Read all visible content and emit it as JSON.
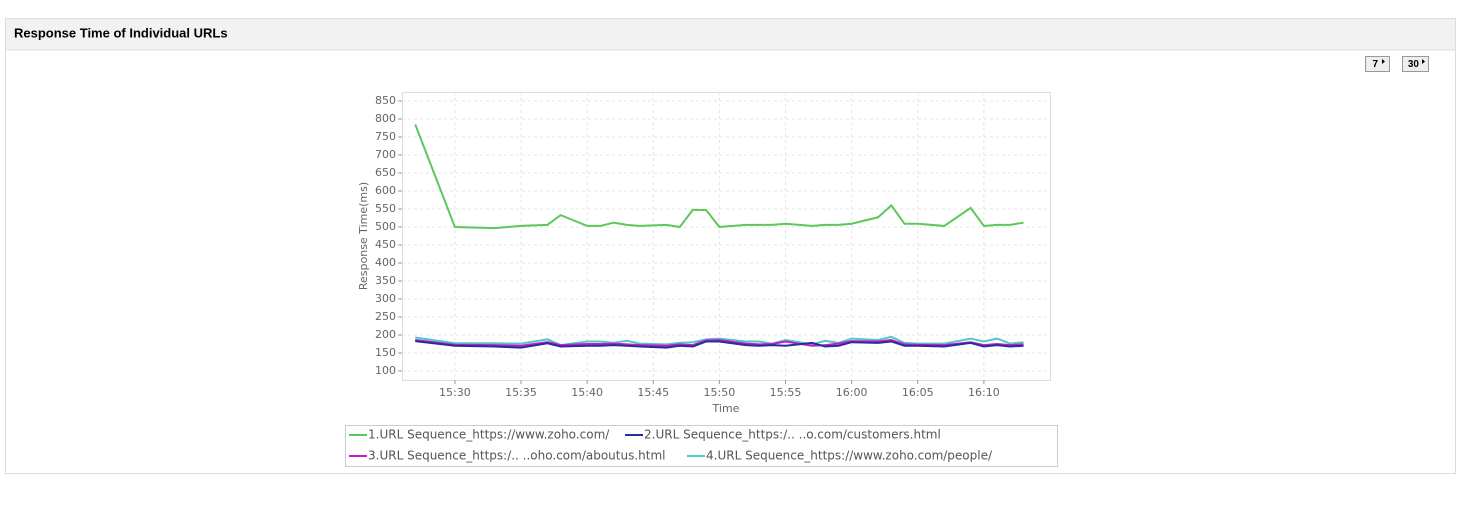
{
  "panel_title": "Response Time of Individual URLs",
  "buttons": [
    "7",
    "30"
  ],
  "chart_data": {
    "type": "line",
    "x_label": "Time",
    "y_label": "Response Time(ms)",
    "x": [
      "15:27",
      "15:30",
      "15:33",
      "15:35",
      "15:37",
      "15:38",
      "15:40",
      "15:41",
      "15:42",
      "15:43",
      "15:44",
      "15:46",
      "15:47",
      "15:48",
      "15:49",
      "15:50",
      "15:52",
      "15:53",
      "15:54",
      "15:55",
      "15:57",
      "15:58",
      "15:59",
      "16:00",
      "16:02",
      "16:03",
      "16:04",
      "16:05",
      "16:07",
      "16:09",
      "16:10",
      "16:11",
      "16:12",
      "16:13"
    ],
    "series": [
      {
        "name": "1.URL Sequence_https://www.zoho.com/",
        "color": "#5cc85a",
        "values": [
          785,
          500,
          497,
          503,
          506,
          533,
          503,
          503,
          512,
          506,
          503,
          506,
          500,
          548,
          547,
          500,
          506,
          506,
          506,
          509,
          503,
          506,
          506,
          509,
          527,
          560,
          509,
          509,
          503,
          553,
          503,
          506,
          506,
          512
        ]
      },
      {
        "name": "2.URL Sequence_https:/.. ..o.com/customers.html",
        "color": "#2b2b9e",
        "values": [
          183,
          170,
          168,
          165,
          177,
          168,
          170,
          170,
          172,
          170,
          168,
          165,
          170,
          168,
          182,
          182,
          172,
          170,
          172,
          170,
          178,
          168,
          170,
          180,
          178,
          182,
          170,
          170,
          168,
          178,
          168,
          172,
          168,
          170
        ]
      },
      {
        "name": "3.URL Sequence_https:/.. ..oho.com/aboutus.html",
        "color": "#c21fc2",
        "values": [
          186,
          173,
          172,
          170,
          180,
          172,
          175,
          175,
          176,
          174,
          172,
          170,
          174,
          172,
          185,
          186,
          176,
          174,
          175,
          182,
          170,
          172,
          176,
          183,
          182,
          186,
          174,
          173,
          172,
          180,
          172,
          175,
          172,
          174
        ]
      },
      {
        "name": "4.URL Sequence_https://www.zoho.com/people/",
        "color": "#52c7c9",
        "values": [
          193,
          177,
          177,
          176,
          188,
          172,
          182,
          182,
          178,
          184,
          176,
          174,
          178,
          180,
          188,
          190,
          182,
          182,
          176,
          186,
          174,
          184,
          178,
          190,
          186,
          195,
          178,
          176,
          176,
          190,
          182,
          190,
          176,
          180
        ]
      }
    ],
    "xlim": [
      "15:26",
      "16:15"
    ],
    "xticks": [
      "15:30",
      "15:35",
      "15:40",
      "15:45",
      "15:50",
      "15:55",
      "16:00",
      "16:05",
      "16:10"
    ],
    "ylim": [
      75,
      875
    ],
    "yticks": [
      100,
      150,
      200,
      250,
      300,
      350,
      400,
      450,
      500,
      550,
      600,
      650,
      700,
      750,
      800,
      850
    ],
    "grid": true
  }
}
